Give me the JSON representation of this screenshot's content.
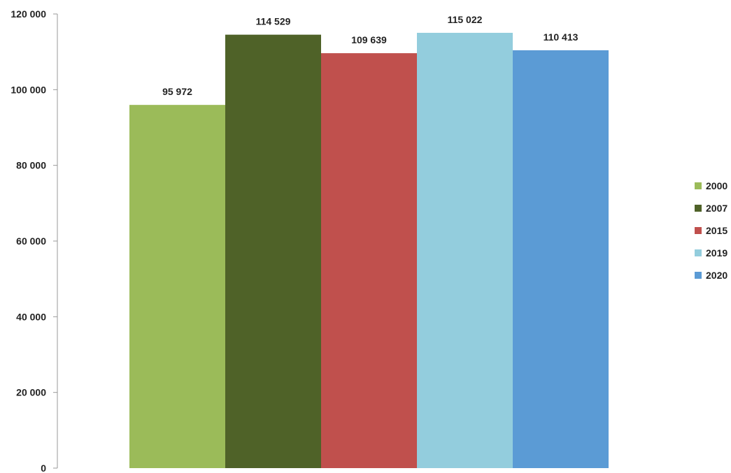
{
  "chart_data": {
    "type": "bar",
    "title": "",
    "xlabel": "",
    "ylabel": "",
    "ylim": [
      0,
      120000
    ],
    "yticks": [
      0,
      20000,
      40000,
      60000,
      80000,
      100000,
      120000
    ],
    "ytick_labels": [
      "0",
      "20 000",
      "40 000",
      "60 000",
      "80 000",
      "100 000",
      "120 000"
    ],
    "grid": false,
    "legend_position": "right",
    "series": [
      {
        "name": "2000",
        "value": 95972,
        "label": "95 972",
        "color": "#9BBB59"
      },
      {
        "name": "2007",
        "value": 114529,
        "label": "114 529",
        "color": "#4F6228"
      },
      {
        "name": "2015",
        "value": 109639,
        "label": "109 639",
        "color": "#C0504D"
      },
      {
        "name": "2019",
        "value": 115022,
        "label": "115 022",
        "color": "#93CDDD"
      },
      {
        "name": "2020",
        "value": 110413,
        "label": "110 413",
        "color": "#5B9BD5"
      }
    ]
  }
}
